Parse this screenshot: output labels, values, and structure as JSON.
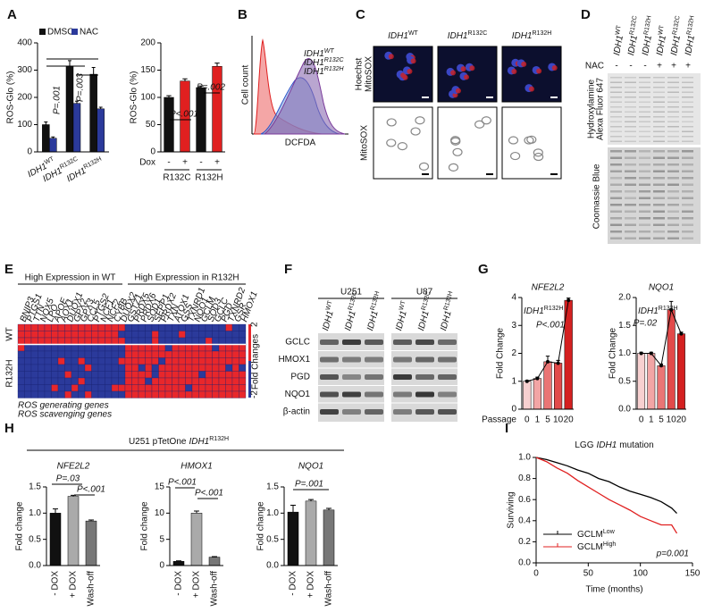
{
  "panel_labels": [
    "A",
    "B",
    "C",
    "D",
    "E",
    "F",
    "G",
    "H",
    "I"
  ],
  "chart_data": [
    {
      "type": "bar",
      "ylabel": "ROS-Glo (%)",
      "categories": [
        [
          "IDH1",
          "WT"
        ],
        [
          "IDH1",
          "R132C"
        ],
        [
          "IDH1",
          "R132H"
        ]
      ],
      "series": [
        {
          "name": "DMSO",
          "color": "#111111",
          "values": [
            100,
            315,
            285
          ],
          "errors": [
            10,
            20,
            25
          ]
        },
        {
          "name": "NAC",
          "color": "#2b3a9b",
          "values": [
            50,
            178,
            158
          ],
          "errors": [
            5,
            8,
            6
          ]
        }
      ],
      "ylim": [
        0,
        400
      ],
      "yticks": [
        0,
        100,
        200,
        300,
        400
      ],
      "annotations": [
        "P=.001",
        "P=.003"
      ]
    },
    {
      "type": "bar",
      "ylabel": "ROS-Glo (%)",
      "categories": [
        "-",
        "+",
        "-",
        "+"
      ],
      "groups": [
        "R132C",
        "R132H"
      ],
      "group_title": "Dox",
      "values": [
        100,
        130,
        118,
        157
      ],
      "errors": [
        3,
        4,
        3,
        6
      ],
      "colors": [
        "#111111",
        "#e02020",
        "#111111",
        "#e02020"
      ],
      "ylim": [
        0,
        200
      ],
      "yticks": [
        0,
        50,
        100,
        150,
        200
      ],
      "annotations": [
        "P<.001",
        "P=.002"
      ]
    },
    {
      "type": "bar-line",
      "title": "NFE2L2",
      "subtitle": [
        "IDH1",
        "R132H"
      ],
      "ylabel": "Fold Change",
      "xlabel": "Passage",
      "categories": [
        "0",
        "1",
        "5",
        "10",
        "20"
      ],
      "values": [
        1.0,
        1.1,
        1.7,
        1.65,
        3.9
      ],
      "errors": [
        0.03,
        0.05,
        0.2,
        0.1,
        0.08
      ],
      "colors": [
        "#f7d0d0",
        "#f2a5a5",
        "#ea7575",
        "#e24a4a",
        "#d42020"
      ],
      "ylim": [
        0,
        4
      ],
      "yticks": [
        0,
        1,
        2,
        3,
        4
      ],
      "annotations": [
        "P<.001"
      ]
    },
    {
      "type": "bar-line",
      "title": "NQO1",
      "subtitle": [
        "IDH1",
        "R132H"
      ],
      "ylabel": "Fold Change",
      "categories": [
        "0",
        "1",
        "5",
        "10",
        "20"
      ],
      "values": [
        1.0,
        1.0,
        0.78,
        1.78,
        1.35
      ],
      "errors": [
        0.02,
        0.02,
        0.03,
        0.15,
        0.03
      ],
      "colors": [
        "#f7d0d0",
        "#f2a5a5",
        "#ea7575",
        "#e24a4a",
        "#d42020"
      ],
      "ylim": [
        0,
        2
      ],
      "yticks": [
        {
          "value": 0,
          "label": "0.0"
        },
        0.5,
        {
          "value": 1,
          "label": "1.0"
        },
        1.5,
        {
          "value": 2,
          "label": "2.0"
        }
      ],
      "annotations": [
        "P=.02"
      ]
    },
    {
      "type": "bar",
      "title": "NFE2L2",
      "ylabel": "Fold change",
      "categories": [
        "- DOX",
        "+ DOX",
        "Wash-off"
      ],
      "values": [
        1.0,
        1.32,
        0.85
      ],
      "errors": [
        0.08,
        0.02,
        0.02
      ],
      "colors": [
        "#111111",
        "#aaaaaa",
        "#777777"
      ],
      "ylim": [
        0,
        1.5
      ],
      "yticks": [
        {
          "value": 0,
          "label": "0.0"
        },
        0.5,
        {
          "value": 1,
          "label": "1.0"
        },
        1.5
      ],
      "annotations": [
        "P=.03",
        "P<.001"
      ]
    },
    {
      "type": "bar",
      "title": "HMOX1",
      "ylabel": "Fold change",
      "categories": [
        "- DOX",
        "+ DOX",
        "Wash-off"
      ],
      "values": [
        0.8,
        10,
        1.6
      ],
      "errors": [
        0.1,
        0.4,
        0.1
      ],
      "colors": [
        "#111111",
        "#aaaaaa",
        "#777777"
      ],
      "ylim": [
        0,
        15
      ],
      "yticks": [
        0,
        5,
        10,
        15
      ],
      "annotations": [
        "P<.001",
        "P<.001"
      ]
    },
    {
      "type": "bar",
      "title": "NQO1",
      "ylabel": "Fold change",
      "categories": [
        "- DOX",
        "+ DOX",
        "Wash-off"
      ],
      "values": [
        1.02,
        1.23,
        1.06
      ],
      "errors": [
        0.13,
        0.03,
        0.03
      ],
      "colors": [
        "#111111",
        "#aaaaaa",
        "#777777"
      ],
      "ylim": [
        0,
        1.5
      ],
      "yticks": [
        {
          "value": 0,
          "label": "0.0"
        },
        0.5,
        {
          "value": 1,
          "label": "1.0"
        },
        1.5
      ],
      "annotations": [
        "P=.001"
      ]
    },
    {
      "type": "line",
      "title": [
        "LGG",
        "IDH1",
        "mutation"
      ],
      "xlabel": "Time (months)",
      "ylabel": "Surviving",
      "xlim": [
        0,
        150
      ],
      "xticks": [
        0,
        50,
        100,
        150
      ],
      "ylim": [
        0,
        1
      ],
      "yticks": [
        {
          "value": 0,
          "label": "0.0"
        },
        0.2,
        0.4,
        0.6,
        0.8,
        {
          "value": 1,
          "label": "1.0"
        }
      ],
      "legend": "lower left",
      "annotations": [
        "p=0.001"
      ],
      "series": [
        {
          "name": [
            "GCLM",
            "Low"
          ],
          "color": "#000000",
          "x": [
            0,
            10,
            20,
            30,
            40,
            50,
            60,
            70,
            80,
            90,
            100,
            110,
            120,
            130,
            135
          ],
          "values": [
            1.0,
            0.98,
            0.95,
            0.92,
            0.88,
            0.85,
            0.8,
            0.77,
            0.72,
            0.68,
            0.65,
            0.62,
            0.58,
            0.52,
            0.47
          ]
        },
        {
          "name": [
            "GCLM",
            "High"
          ],
          "color": "#e02020",
          "x": [
            0,
            10,
            20,
            30,
            40,
            50,
            60,
            70,
            80,
            90,
            100,
            110,
            120,
            130,
            135
          ],
          "values": [
            1.0,
            0.96,
            0.9,
            0.85,
            0.78,
            0.72,
            0.66,
            0.6,
            0.55,
            0.5,
            0.44,
            0.4,
            0.36,
            0.36,
            0.28
          ]
        }
      ]
    }
  ],
  "panel_B": {
    "ylabel": "Cell count",
    "xlabel": "DCFDA",
    "legend": [
      [
        "IDH1",
        "WT"
      ],
      [
        "IDH1",
        "R132C"
      ],
      [
        "IDH1",
        "R132H"
      ]
    ],
    "legend_colors": [
      "#e02020",
      "#2b50c8",
      "#7a3a9a"
    ]
  },
  "panel_C": {
    "columns": [
      [
        "IDH1",
        "WT"
      ],
      [
        "IDH1",
        "R132C"
      ],
      [
        "IDH1",
        "R132H"
      ]
    ],
    "row1_label": [
      "Hoechst",
      "MitoSOX"
    ],
    "row1_colors": [
      "#1f3fbf",
      "#e02020"
    ],
    "row2_label": "MitoSOX"
  },
  "panel_D": {
    "lanes": [
      [
        "IDH1",
        "WT"
      ],
      [
        "IDH1",
        "R132C"
      ],
      [
        "IDH1",
        "R132H"
      ],
      [
        "IDH1",
        "WT"
      ],
      [
        "IDH1",
        "R132C"
      ],
      [
        "IDH1",
        "R132H"
      ]
    ],
    "treatment": "NAC",
    "treatment_marks": [
      "-",
      "-",
      "-",
      "+",
      "+",
      "+"
    ],
    "blot1_label": [
      "Hydroxylamine",
      "Alexa Fluor 647"
    ],
    "blot2_label": "Coomassie Blue"
  },
  "panel_E": {
    "headers": [
      "High Expression in WT",
      "High Expression in R132H"
    ],
    "genes": [
      {
        "name": "BNIP3",
        "color": "#111111"
      },
      {
        "name": "PTGS1",
        "color": "#111111"
      },
      {
        "name": "TTN",
        "color": "#111111"
      },
      {
        "name": "NOX5",
        "color": "#3a9a3a"
      },
      {
        "name": "LPO",
        "color": "#111111"
      },
      {
        "name": "APOE",
        "color": "#111111"
      },
      {
        "name": "AOX1",
        "color": "#111111"
      },
      {
        "name": "DUOX1",
        "color": "#3a9a3a"
      },
      {
        "name": "GPX2",
        "color": "#e02020"
      },
      {
        "name": "GPX3",
        "color": "#e02020"
      },
      {
        "name": "CCL5",
        "color": "#111111"
      },
      {
        "name": "PTGS2",
        "color": "#111111"
      },
      {
        "name": "NCF1",
        "color": "#3a9a3a"
      },
      {
        "name": "NCF2",
        "color": "#3a9a3a"
      },
      {
        "name": "CYBB",
        "color": "#3a9a3a"
      },
      {
        "name": "DUOX2",
        "color": "#3a9a3a"
      },
      {
        "name": "GSTZ1",
        "color": "#e02020"
      },
      {
        "name": "PRDX5",
        "color": "#e02020"
      },
      {
        "name": "PRDX6",
        "color": "#e02020"
      },
      {
        "name": "SOD1",
        "color": "#e02020"
      },
      {
        "name": "SEPP1",
        "color": "#e02020"
      },
      {
        "name": "PRDX2",
        "color": "#e02020"
      },
      {
        "name": "TXN",
        "color": "#111111"
      },
      {
        "name": "ATOX1",
        "color": "#e02020"
      },
      {
        "name": "GSS",
        "color": "#e02020"
      },
      {
        "name": "TXNRD1",
        "color": "#111111"
      },
      {
        "name": "NQO1",
        "color": "#e02020"
      },
      {
        "name": "GCLM",
        "color": "#e02020"
      },
      {
        "name": "SOD3",
        "color": "#111111"
      },
      {
        "name": "GCLC",
        "color": "#e02020"
      },
      {
        "name": "PGD",
        "color": "#e02020"
      },
      {
        "name": "TXNRD2",
        "color": "#111111"
      },
      {
        "name": "GSR",
        "color": "#e02020"
      },
      {
        "name": "HMOX1",
        "color": "#e02020"
      }
    ],
    "rows": [
      "WT",
      "R132H"
    ],
    "legend": [
      "ROS generating genes",
      "ROS scavenging genes"
    ],
    "legend_colors": [
      "#3a9a3a",
      "#e02020"
    ],
    "colorbar": [
      "2",
      "Fold Changes",
      "-2"
    ]
  },
  "panel_F": {
    "cell_lines": [
      "U251",
      "U87"
    ],
    "lanes": [
      [
        "IDH1",
        "WT"
      ],
      [
        "IDH1",
        "R132C"
      ],
      [
        "IDH1",
        "R132H"
      ],
      [
        "IDH1",
        "WT"
      ],
      [
        "IDH1",
        "R132C"
      ],
      [
        "IDH1",
        "R132H"
      ]
    ],
    "proteins": [
      "GCLC",
      "HMOX1",
      "PGD",
      "NQO1",
      "β-actin"
    ]
  },
  "panel_H": {
    "title": [
      "U251 pTetOne",
      "IDH1",
      "R132H"
    ]
  }
}
